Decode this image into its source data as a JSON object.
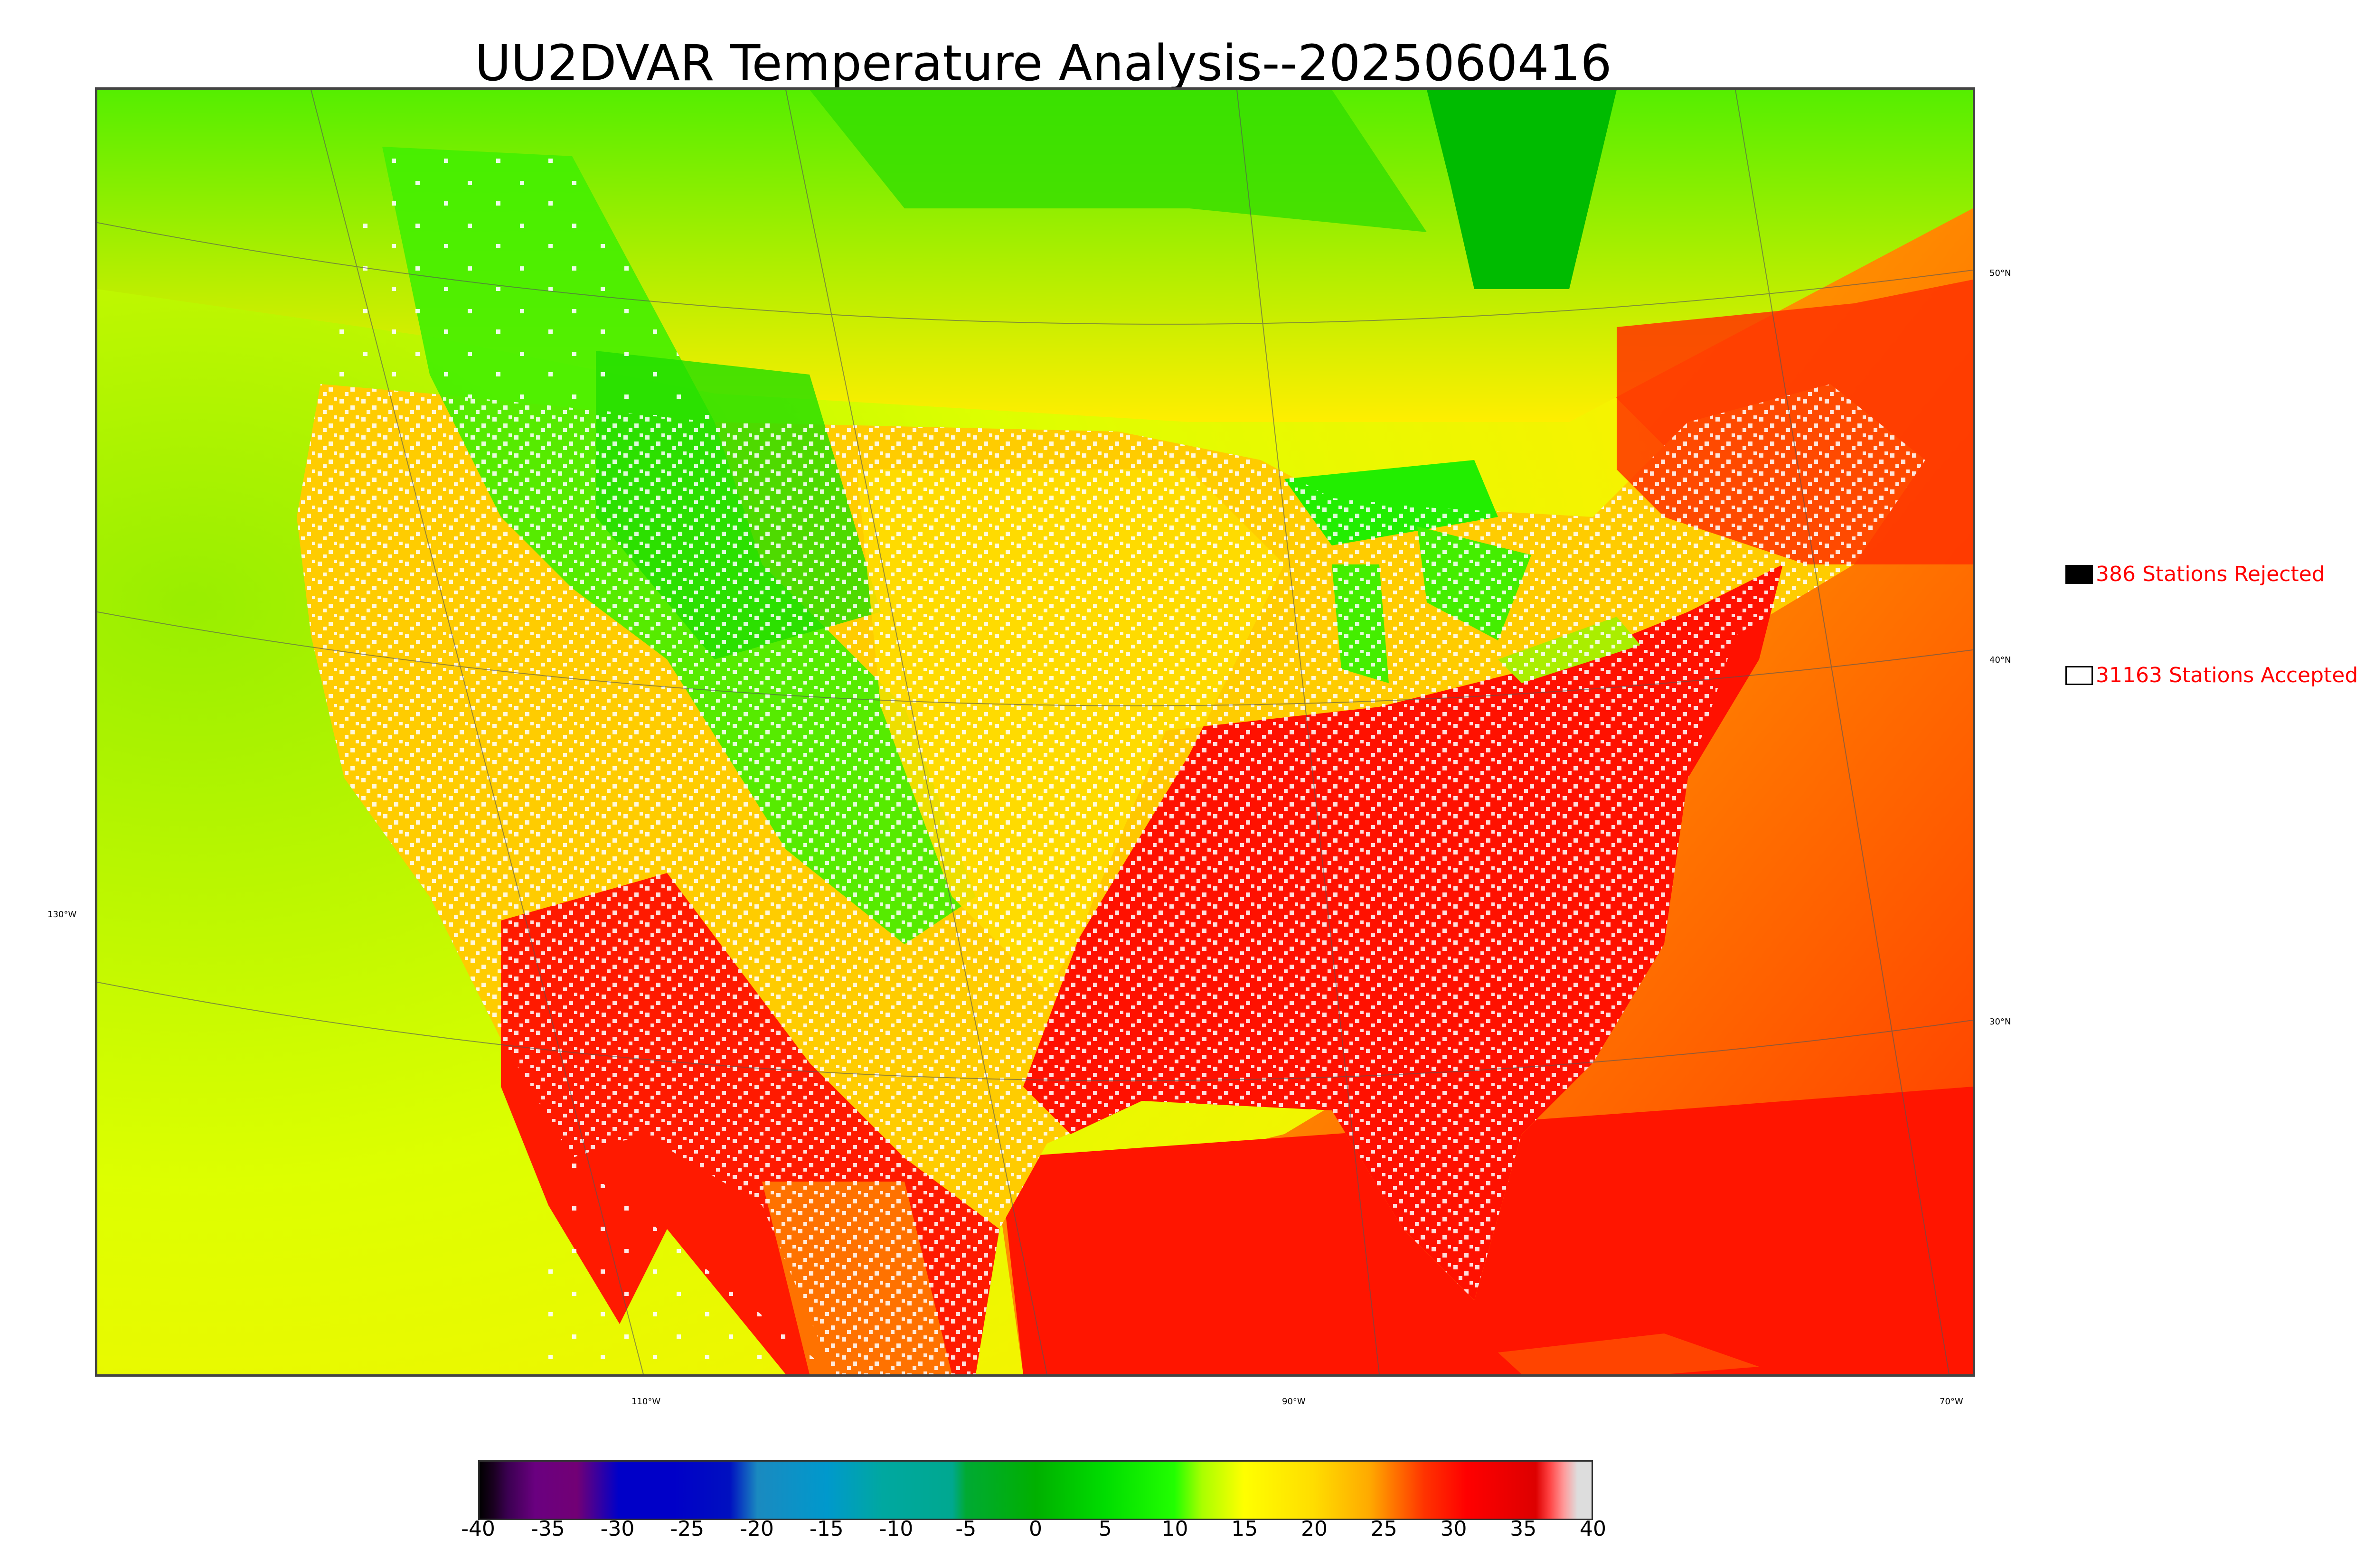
{
  "title": "UU2DVAR Temperature Analysis--2025060416",
  "map": {
    "lat_labels": [
      "50°N",
      "40°N",
      "30°N"
    ],
    "lon_labels_bottom": [
      "110°W",
      "90°W",
      "70°W"
    ],
    "lon_label_left": "130°W"
  },
  "legend": {
    "rejected": {
      "count_label": "386 Stations Rejected",
      "color": "#000000"
    },
    "accepted": {
      "count_label": "31163 Stations Accepted",
      "color": "#ffffff"
    }
  },
  "colorbar": {
    "ticks": [
      "-40",
      "-35",
      "-30",
      "-25",
      "-20",
      "-15",
      "-10",
      "-5",
      "0",
      "5",
      "10",
      "15",
      "20",
      "25",
      "30",
      "35",
      "40"
    ],
    "range": [
      -40,
      40
    ],
    "colors": [
      {
        "v": -40,
        "c": "#000000"
      },
      {
        "v": -39,
        "c": "#1a0020"
      },
      {
        "v": -38,
        "c": "#3a0050"
      },
      {
        "v": -36,
        "c": "#6a0080"
      },
      {
        "v": -33,
        "c": "#720075"
      },
      {
        "v": -30,
        "c": "#0000c8"
      },
      {
        "v": -26,
        "c": "#0000c8"
      },
      {
        "v": -22,
        "c": "#0010c0"
      },
      {
        "v": -20,
        "c": "#1a8ac0"
      },
      {
        "v": -15,
        "c": "#0099cc"
      },
      {
        "v": -11,
        "c": "#00a8a0"
      },
      {
        "v": -6,
        "c": "#00a890"
      },
      {
        "v": -5,
        "c": "#00aa33"
      },
      {
        "v": 0,
        "c": "#00b000"
      },
      {
        "v": 5,
        "c": "#00dd00"
      },
      {
        "v": 10,
        "c": "#22ff00"
      },
      {
        "v": 12,
        "c": "#aaff00"
      },
      {
        "v": 15,
        "c": "#ffff00"
      },
      {
        "v": 20,
        "c": "#ffdd00"
      },
      {
        "v": 24,
        "c": "#ffaa00"
      },
      {
        "v": 28,
        "c": "#ff3300"
      },
      {
        "v": 31,
        "c": "#ff0000"
      },
      {
        "v": 36,
        "c": "#dd0000"
      },
      {
        "v": 37,
        "c": "#ff4444"
      },
      {
        "v": 38,
        "c": "#ff9999"
      },
      {
        "v": 39,
        "c": "#dddddd"
      }
    ]
  },
  "colors": {
    "title": "#000000",
    "legend_text": "#ff0000",
    "ocean_pacific": "#ccee00",
    "ocean_gulf": "#ff2200",
    "land_warm": "#ff0000",
    "land_mid": "#ffcc00",
    "land_cool": "#33ee00"
  }
}
